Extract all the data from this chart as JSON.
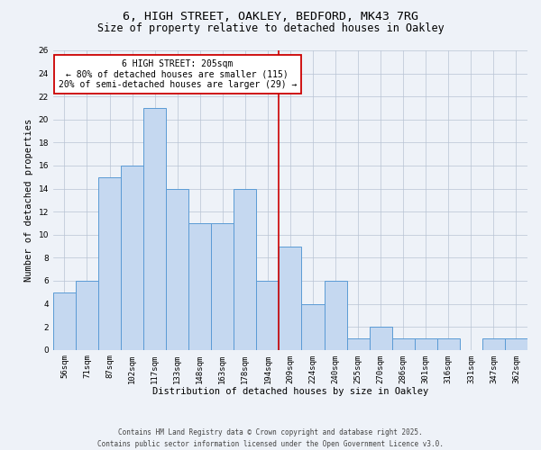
{
  "title": "6, HIGH STREET, OAKLEY, BEDFORD, MK43 7RG",
  "subtitle": "Size of property relative to detached houses in Oakley",
  "xlabel": "Distribution of detached houses by size in Oakley",
  "ylabel": "Number of detached properties",
  "bar_labels": [
    "56sqm",
    "71sqm",
    "87sqm",
    "102sqm",
    "117sqm",
    "133sqm",
    "148sqm",
    "163sqm",
    "178sqm",
    "194sqm",
    "209sqm",
    "224sqm",
    "240sqm",
    "255sqm",
    "270sqm",
    "286sqm",
    "301sqm",
    "316sqm",
    "331sqm",
    "347sqm",
    "362sqm"
  ],
  "bar_values": [
    5,
    6,
    15,
    16,
    21,
    14,
    11,
    11,
    14,
    6,
    9,
    4,
    6,
    1,
    2,
    1,
    1,
    1,
    0,
    1,
    1
  ],
  "bar_color": "#c5d8f0",
  "bar_edgecolor": "#5b9bd5",
  "ylim": [
    0,
    26
  ],
  "yticks": [
    0,
    2,
    4,
    6,
    8,
    10,
    12,
    14,
    16,
    18,
    20,
    22,
    24,
    26
  ],
  "vline_color": "#cc0000",
  "annotation_title": "6 HIGH STREET: 205sqm",
  "annotation_line1": "← 80% of detached houses are smaller (115)",
  "annotation_line2": "20% of semi-detached houses are larger (29) →",
  "annotation_box_color": "#ffffff",
  "annotation_box_edgecolor": "#cc0000",
  "footer1": "Contains HM Land Registry data © Crown copyright and database right 2025.",
  "footer2": "Contains public sector information licensed under the Open Government Licence v3.0.",
  "bg_color": "#eef2f8",
  "title_fontsize": 9.5,
  "subtitle_fontsize": 8.5,
  "axis_label_fontsize": 7.5,
  "tick_fontsize": 6.5,
  "annotation_fontsize": 7.0,
  "footer_fontsize": 5.5
}
